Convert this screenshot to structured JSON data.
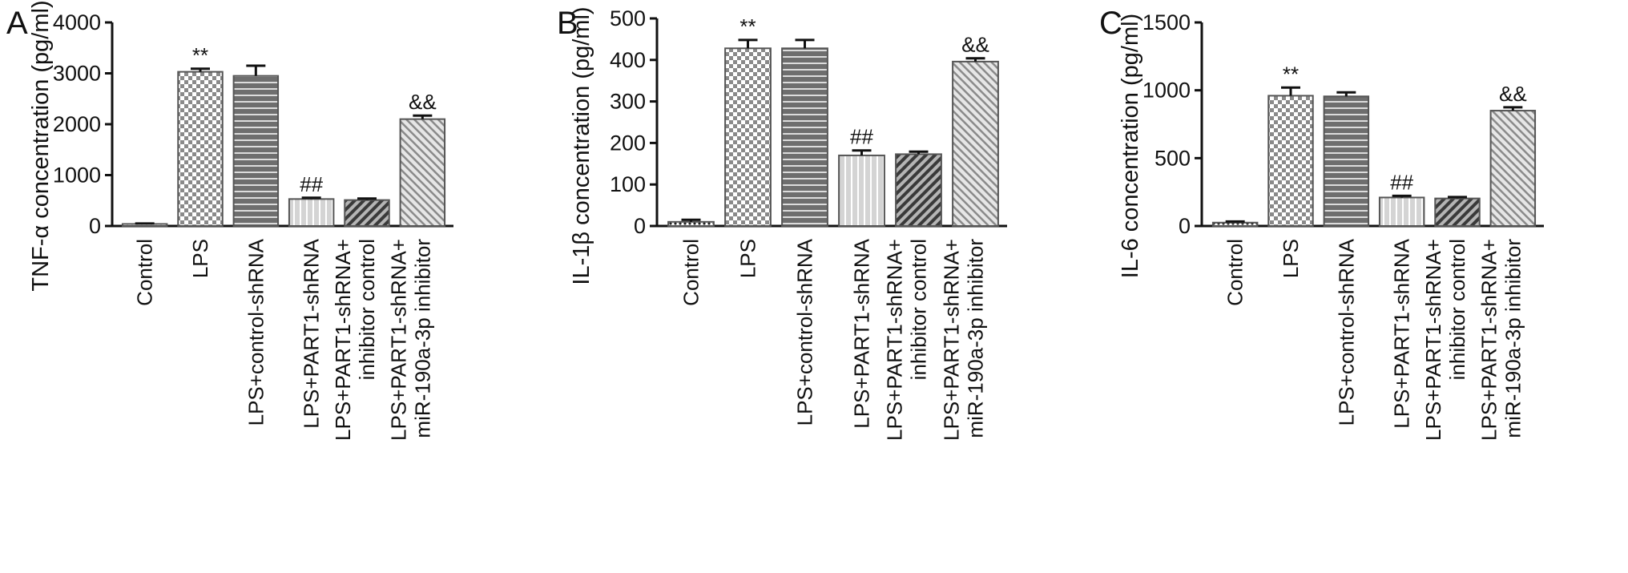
{
  "figure": {
    "categories": [
      [
        "Control"
      ],
      [
        "LPS"
      ],
      [
        "LPS+control-shRNA"
      ],
      [
        "LPS+PART1-shRNA"
      ],
      [
        "LPS+PART1-shRNA+",
        "inhibitor control"
      ],
      [
        "LPS+PART1-shRNA+",
        "miR-190a-3p inhibitor"
      ]
    ],
    "bar_styles": [
      "dots",
      "checker",
      "hstripes",
      "vstripes",
      "diag-dark",
      "diag-light"
    ]
  },
  "chart_data": [
    {
      "type": "bar",
      "panel": "A",
      "ylabel": "TNF-α concentration (pg/ml)",
      "ylim": [
        0,
        4000
      ],
      "yticks": [
        0,
        1000,
        2000,
        3000,
        4000
      ],
      "categories": [
        "Control",
        "LPS",
        "LPS+control-shRNA",
        "LPS+PART1-shRNA",
        "LPS+PART1-shRNA+ inhibitor control",
        "LPS+PART1-shRNA+ miR-190a-3p inhibitor"
      ],
      "values": [
        40,
        3030,
        2950,
        530,
        510,
        2100
      ],
      "errors": [
        10,
        60,
        200,
        25,
        30,
        70
      ],
      "annotations": [
        "",
        "**",
        "",
        "##",
        "",
        "&&"
      ]
    },
    {
      "type": "bar",
      "panel": "B",
      "ylabel": "IL-1β concentration (pg/ml)",
      "ylim": [
        0,
        500
      ],
      "yticks": [
        0,
        100,
        200,
        300,
        400,
        500
      ],
      "categories": [
        "Control",
        "LPS",
        "LPS+control-shRNA",
        "LPS+PART1-shRNA",
        "LPS+PART1-shRNA+ inhibitor control",
        "LPS+PART1-shRNA+ miR-190a-3p inhibitor"
      ],
      "values": [
        10,
        428,
        428,
        170,
        173,
        396
      ],
      "errors": [
        5,
        20,
        20,
        12,
        6,
        8
      ],
      "annotations": [
        "",
        "**",
        "",
        "##",
        "",
        "&&"
      ]
    },
    {
      "type": "bar",
      "panel": "C",
      "ylabel": "IL-6 concentration (pg/ml)",
      "ylim": [
        0,
        1500
      ],
      "yticks": [
        0,
        500,
        1000,
        1500
      ],
      "categories": [
        "Control",
        "LPS",
        "LPS+control-shRNA",
        "LPS+PART1-shRNA",
        "LPS+PART1-shRNA+ inhibitor control",
        "LPS+PART1-shRNA+ miR-190a-3p inhibitor"
      ],
      "values": [
        25,
        960,
        955,
        210,
        203,
        850
      ],
      "errors": [
        8,
        60,
        30,
        12,
        10,
        25
      ],
      "annotations": [
        "",
        "**",
        "",
        "##",
        "",
        "&&"
      ]
    }
  ]
}
